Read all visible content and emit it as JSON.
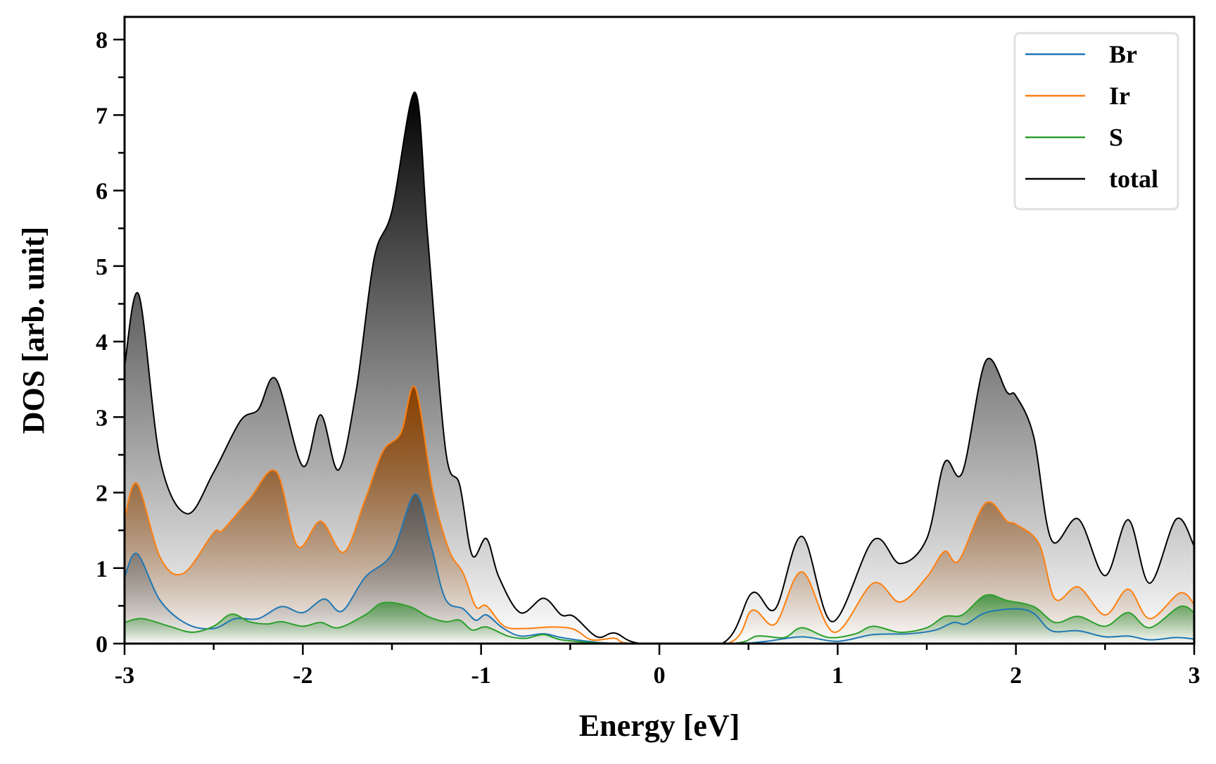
{
  "chart_data": {
    "type": "area",
    "title": "",
    "xlabel": "Energy [eV]",
    "ylabel": "DOS [arb. unit]",
    "xlim": [
      -3,
      3
    ],
    "ylim": [
      0,
      8.3
    ],
    "xticks": [
      -3,
      -2,
      -1,
      0,
      1,
      2,
      3
    ],
    "xtick_labels": [
      "-3",
      "-2",
      "-1",
      "0",
      "1",
      "2",
      "3"
    ],
    "yticks": [
      0,
      1,
      2,
      3,
      4,
      5,
      6,
      7,
      8
    ],
    "ytick_labels": [
      "0",
      "1",
      "2",
      "3",
      "4",
      "5",
      "6",
      "7",
      "8"
    ],
    "grid": false,
    "legend_position": "top-right",
    "series": [
      {
        "name": "Br",
        "color": "#1f77b4",
        "fill": "#3a4a58",
        "x": [
          -3,
          -2.93,
          -2.8,
          -2.65,
          -2.5,
          -2.38,
          -2.25,
          -2.12,
          -2.0,
          -1.88,
          -1.78,
          -1.65,
          -1.5,
          -1.37,
          -1.28,
          -1.2,
          -1.1,
          -1.03,
          -0.97,
          -0.88,
          -0.78,
          -0.65,
          -0.55,
          -0.4,
          -0.2,
          0.4,
          0.6,
          0.8,
          1.0,
          1.2,
          1.4,
          1.55,
          1.65,
          1.72,
          1.83,
          2.0,
          2.1,
          2.2,
          2.35,
          2.5,
          2.63,
          2.75,
          2.9,
          3
        ],
        "y": [
          0.88,
          1.19,
          0.57,
          0.26,
          0.2,
          0.33,
          0.33,
          0.49,
          0.41,
          0.59,
          0.43,
          0.88,
          1.19,
          1.98,
          1.29,
          0.59,
          0.46,
          0.31,
          0.38,
          0.21,
          0.1,
          0.13,
          0.08,
          0.03,
          0,
          0,
          0.03,
          0.09,
          0.03,
          0.12,
          0.13,
          0.18,
          0.28,
          0.26,
          0.41,
          0.46,
          0.4,
          0.17,
          0.17,
          0.09,
          0.1,
          0.05,
          0.08,
          0.06
        ]
      },
      {
        "name": "Ir",
        "color": "#ff7f0e",
        "fill": "#8b4200",
        "x": [
          -3,
          -2.93,
          -2.8,
          -2.67,
          -2.5,
          -2.45,
          -2.3,
          -2.15,
          -2.03,
          -1.9,
          -1.77,
          -1.65,
          -1.55,
          -1.45,
          -1.37,
          -1.27,
          -1.18,
          -1.1,
          -1.03,
          -0.97,
          -0.87,
          -0.75,
          -0.6,
          -0.48,
          -0.38,
          -0.25,
          -0.15,
          0.38,
          0.52,
          0.65,
          0.8,
          0.98,
          1.2,
          1.35,
          1.5,
          1.6,
          1.68,
          1.83,
          1.95,
          2.0,
          2.13,
          2.22,
          2.35,
          2.5,
          2.63,
          2.75,
          2.92,
          3
        ],
        "y": [
          1.65,
          2.12,
          1.14,
          0.93,
          1.47,
          1.5,
          1.91,
          2.28,
          1.29,
          1.62,
          1.21,
          1.91,
          2.55,
          2.79,
          3.39,
          2.01,
          1.24,
          0.93,
          0.49,
          0.5,
          0.23,
          0.2,
          0.22,
          0.19,
          0.05,
          0.07,
          0,
          0,
          0.44,
          0.26,
          0.95,
          0.15,
          0.8,
          0.55,
          0.88,
          1.22,
          1.1,
          1.86,
          1.62,
          1.58,
          1.32,
          0.59,
          0.75,
          0.38,
          0.72,
          0.33,
          0.67,
          0.52
        ]
      },
      {
        "name": "S",
        "color": "#2ca02c",
        "fill": "#2c8a2c",
        "x": [
          -3,
          -2.9,
          -2.75,
          -2.62,
          -2.5,
          -2.4,
          -2.3,
          -2.2,
          -2.12,
          -2.0,
          -1.9,
          -1.8,
          -1.65,
          -1.55,
          -1.4,
          -1.3,
          -1.2,
          -1.12,
          -1.05,
          -0.97,
          -0.85,
          -0.75,
          -0.65,
          -0.55,
          -0.35,
          -0.2,
          0.4,
          0.55,
          0.7,
          0.8,
          0.95,
          1.1,
          1.2,
          1.35,
          1.5,
          1.6,
          1.7,
          1.83,
          1.95,
          2.1,
          2.22,
          2.35,
          2.5,
          2.63,
          2.75,
          2.92,
          3
        ],
        "y": [
          0.28,
          0.33,
          0.23,
          0.15,
          0.23,
          0.39,
          0.29,
          0.26,
          0.29,
          0.23,
          0.28,
          0.21,
          0.38,
          0.54,
          0.49,
          0.36,
          0.29,
          0.31,
          0.18,
          0.22,
          0.1,
          0.07,
          0.12,
          0.05,
          0.01,
          0,
          0,
          0.1,
          0.08,
          0.21,
          0.08,
          0.13,
          0.23,
          0.15,
          0.21,
          0.36,
          0.38,
          0.64,
          0.57,
          0.49,
          0.28,
          0.36,
          0.23,
          0.41,
          0.21,
          0.49,
          0.41
        ]
      },
      {
        "name": "total",
        "color": "#000000",
        "fill": "#000000",
        "x": [
          -3,
          -2.92,
          -2.8,
          -2.65,
          -2.5,
          -2.35,
          -2.25,
          -2.15,
          -2.0,
          -1.9,
          -1.8,
          -1.7,
          -1.6,
          -1.5,
          -1.37,
          -1.3,
          -1.2,
          -1.12,
          -1.05,
          -0.97,
          -0.9,
          -0.78,
          -0.65,
          -0.55,
          -0.48,
          -0.35,
          -0.25,
          -0.1,
          0.35,
          0.52,
          0.65,
          0.8,
          0.97,
          1.2,
          1.35,
          1.5,
          1.6,
          1.7,
          1.83,
          1.95,
          2.0,
          2.1,
          2.2,
          2.35,
          2.5,
          2.63,
          2.75,
          2.9,
          3
        ],
        "y": [
          3.67,
          4.62,
          2.43,
          1.72,
          2.27,
          2.95,
          3.1,
          3.5,
          2.35,
          3.03,
          2.3,
          3.36,
          5.1,
          5.73,
          7.3,
          5.4,
          2.58,
          2.1,
          1.17,
          1.39,
          0.88,
          0.41,
          0.6,
          0.38,
          0.36,
          0.09,
          0.14,
          0,
          0,
          0.67,
          0.46,
          1.42,
          0.29,
          1.37,
          1.06,
          1.39,
          2.4,
          2.27,
          3.74,
          3.33,
          3.28,
          2.74,
          1.37,
          1.65,
          0.9,
          1.64,
          0.8,
          1.65,
          1.29
        ]
      }
    ]
  }
}
